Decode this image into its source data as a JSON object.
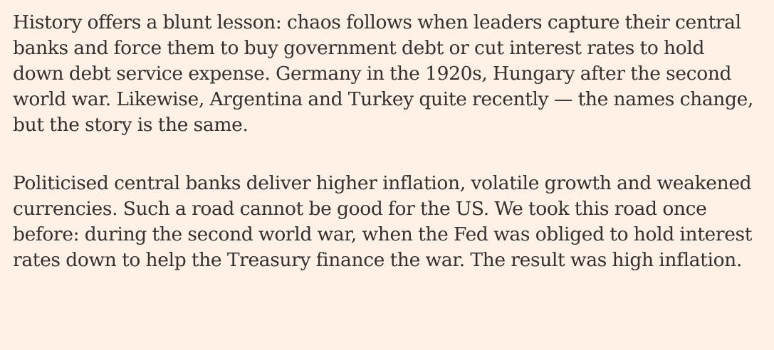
{
  "article": {
    "paragraphs": [
      {
        "lines": [
          "History offers a blunt lesson: chaos follows when leaders capture their central",
          "banks and force them to buy government debt or cut interest rates to hold",
          "down debt service expense. Germany in the 1920s, Hungary after the second",
          "world war. Likewise, Argentina and Turkey quite recently — the names change,",
          "but the story is the same."
        ]
      },
      {
        "lines": [
          "Politicised central banks deliver higher inflation, volatile growth and weakened",
          "currencies. Such a road cannot be good for the US. We took this road once",
          "before: during the second world war, when the Fed was obliged to hold interest",
          "rates down to help the Treasury finance the war. The result was high inflation."
        ]
      }
    ]
  }
}
